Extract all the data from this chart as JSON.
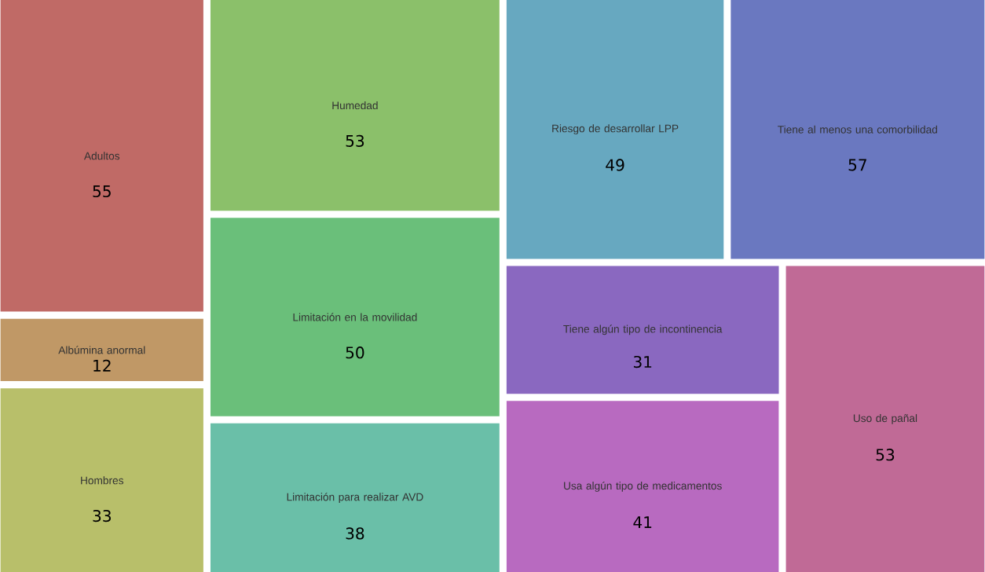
{
  "chart_data": {
    "type": "other",
    "categories": [
      "Adultos",
      "Albúmina anormal",
      "Hombres",
      "Humedad",
      "Limitación en la movilidad",
      "Limitación para realizar AVD",
      "Riesgo de desarrollar LPP",
      "Tiene al menos una comorbilidad",
      "Tiene algún tipo de incontinencia",
      "Usa algún tipo de medicamentos",
      "Uso de pañal"
    ],
    "values": [
      55,
      12,
      33,
      53,
      50,
      38,
      49,
      57,
      31,
      41,
      53
    ],
    "colors": [
      "#c06a66",
      "#c09866",
      "#b8bf6a",
      "#8bc06a",
      "#6abf7a",
      "#6abfa8",
      "#67a8c0",
      "#6a78c0",
      "#8a68c0",
      "#b86ac0",
      "#c06a96"
    ],
    "data_labels": true
  }
}
